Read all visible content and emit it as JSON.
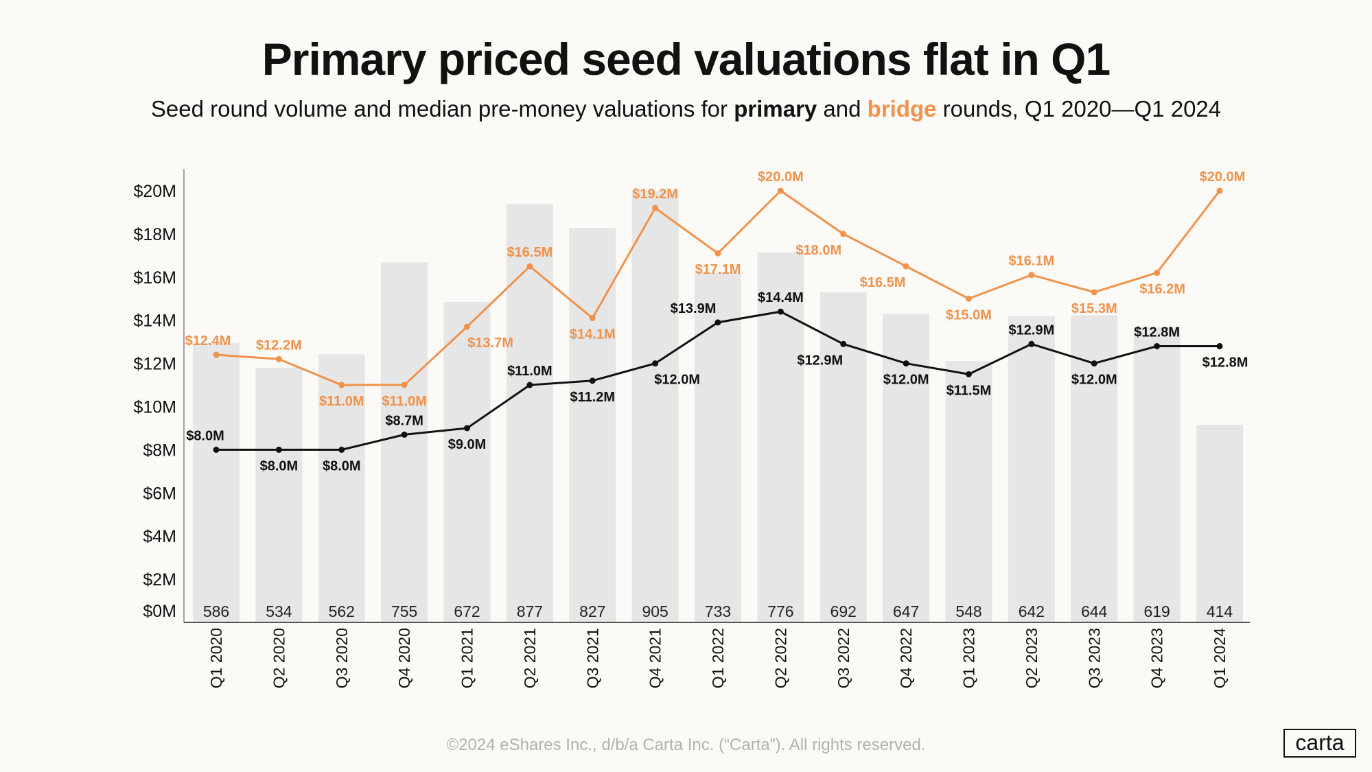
{
  "header": {
    "title": "Primary priced seed valuations flat in Q1",
    "subtitle_pre": "Seed round volume and median pre-money valuations for ",
    "subtitle_primary": "primary",
    "subtitle_mid": " and ",
    "subtitle_bridge": "bridge",
    "subtitle_post": " rounds, Q1 2020—Q1 2024"
  },
  "footer": {
    "copyright": "©2024 eShares Inc., d/b/a Carta Inc. (“Carta”). All rights reserved.",
    "logo": "carta"
  },
  "colors": {
    "primary": "#111111",
    "bridge": "#f0924c",
    "bars": "#e6e6e6",
    "background": "#fcfaf6"
  },
  "chart_data": {
    "type": "bar+line",
    "title": "Primary priced seed valuations flat in Q1",
    "categories": [
      "Q1 2020",
      "Q2 2020",
      "Q3 2020",
      "Q4 2020",
      "Q1 2021",
      "Q2 2021",
      "Q3 2021",
      "Q4 2021",
      "Q1 2022",
      "Q2 2022",
      "Q3 2022",
      "Q4 2022",
      "Q1 2023",
      "Q2 2023",
      "Q3 2023",
      "Q4 2023",
      "Q1 2024"
    ],
    "bars": {
      "values": [
        586,
        534,
        562,
        755,
        672,
        877,
        827,
        905,
        733,
        776,
        692,
        647,
        548,
        642,
        644,
        619,
        414
      ]
    },
    "series": [
      {
        "name": "primary",
        "values": [
          8.0,
          8.0,
          8.0,
          8.7,
          9.0,
          11.0,
          11.2,
          12.0,
          13.9,
          14.4,
          12.9,
          12.0,
          11.5,
          12.9,
          12.0,
          12.8,
          12.8
        ],
        "labels": [
          "$8.0M",
          "$8.0M",
          "$8.0M",
          "$8.7M",
          "$9.0M",
          "$11.0M",
          "$11.2M",
          "$12.0M",
          "$13.9M",
          "$14.4M",
          "$12.9M",
          "$12.0M",
          "$11.5M",
          "$12.9M",
          "$12.0M",
          "$12.8M",
          "$12.8M"
        ]
      },
      {
        "name": "bridge",
        "values": [
          12.4,
          12.2,
          11.0,
          11.0,
          13.7,
          16.5,
          14.1,
          19.2,
          17.1,
          20.0,
          18.0,
          16.5,
          15.0,
          16.1,
          15.3,
          16.2,
          20.0
        ],
        "labels": [
          "$12.4M",
          "$12.2M",
          "$11.0M",
          "$11.0M",
          "$13.7M",
          "$16.5M",
          "$14.1M",
          "$19.2M",
          "$17.1M",
          "$20.0M",
          "$18.0M",
          "$16.5M",
          "$15.0M",
          "$16.1M",
          "$15.3M",
          "$16.2M",
          "$20.0M"
        ]
      }
    ],
    "y_ticks": [
      "$0M",
      "$2M",
      "$4M",
      "$6M",
      "$8M",
      "$10M",
      "$12M",
      "$14M",
      "$16M",
      "$18M",
      "$20M"
    ],
    "ylim": [
      0,
      20
    ],
    "grid": false,
    "legend": "none (encoded in subtitle)"
  }
}
